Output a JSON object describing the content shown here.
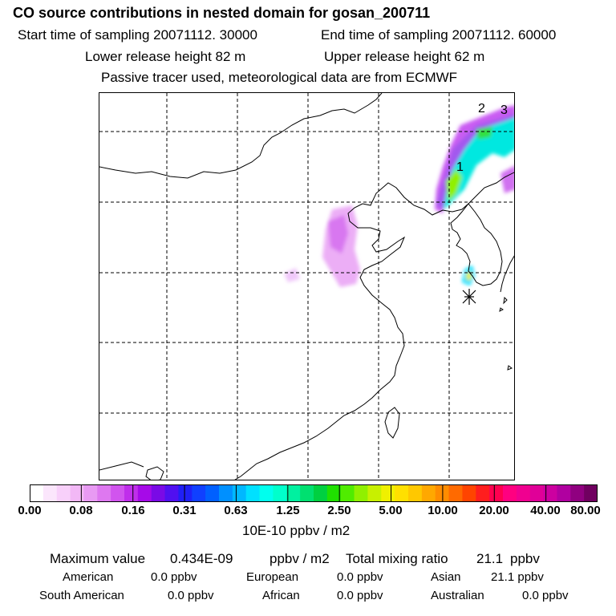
{
  "header": {
    "title": "CO  source contributions in nested domain for gosan_200711",
    "start_time": "Start time of sampling 20071112. 30000",
    "end_time": "End time of sampling 20071112. 60000",
    "lower_height": "Lower release height   82 m",
    "upper_height": "Upper release height   62 m",
    "tracer_note": "Passive tracer used, meteorological data are from ECMWF"
  },
  "map": {
    "station_marker": "asterisk-icon",
    "labels": [
      "1",
      "2",
      "3"
    ]
  },
  "colorbar": {
    "colors": [
      "#ffffff",
      "#fbe6fc",
      "#f8d0fa",
      "#f2b8f6",
      "#e89af3",
      "#de78f0",
      "#d154ee",
      "#c02eeb",
      "#a60ae8",
      "#7a0ae6",
      "#5010f0",
      "#2020f6",
      "#1040ff",
      "#0060ff",
      "#0090ff",
      "#00b8ff",
      "#00e0ff",
      "#00ffee",
      "#00ffcc",
      "#00f0a0",
      "#00e070",
      "#00d040",
      "#20e000",
      "#50ec00",
      "#90f000",
      "#c8f000",
      "#f0f000",
      "#ffe000",
      "#ffc800",
      "#ffa800",
      "#ff8c00",
      "#ff6a00",
      "#ff4400",
      "#ff1e1e",
      "#ff0050",
      "#ff0080",
      "#f00090",
      "#e00098",
      "#cc00a0",
      "#b000a0",
      "#900080",
      "#700060"
    ],
    "ticks": [
      "0.00",
      "0.08",
      "0.16",
      "0.31",
      "0.63",
      "1.25",
      "2.50",
      "5.00",
      "10.00",
      "20.00",
      "40.00",
      "80.00"
    ],
    "unit": "10E-10 ppbv / m2"
  },
  "summary": {
    "max_label": "Maximum value",
    "max_value": "0.434E-09",
    "max_unit": "ppbv / m2",
    "mix_label": "Total mixing ratio",
    "mix_value": "21.1",
    "mix_unit": "ppbv",
    "sources": [
      {
        "name": "American",
        "value": "0.0 ppbv"
      },
      {
        "name": "European",
        "value": "0.0 ppbv"
      },
      {
        "name": "Asian",
        "value": "21.1 ppbv"
      },
      {
        "name": "South American",
        "value": "0.0 ppbv"
      },
      {
        "name": "African",
        "value": "0.0 ppbv"
      },
      {
        "name": "Australian",
        "value": "0.0 ppbv"
      }
    ]
  }
}
